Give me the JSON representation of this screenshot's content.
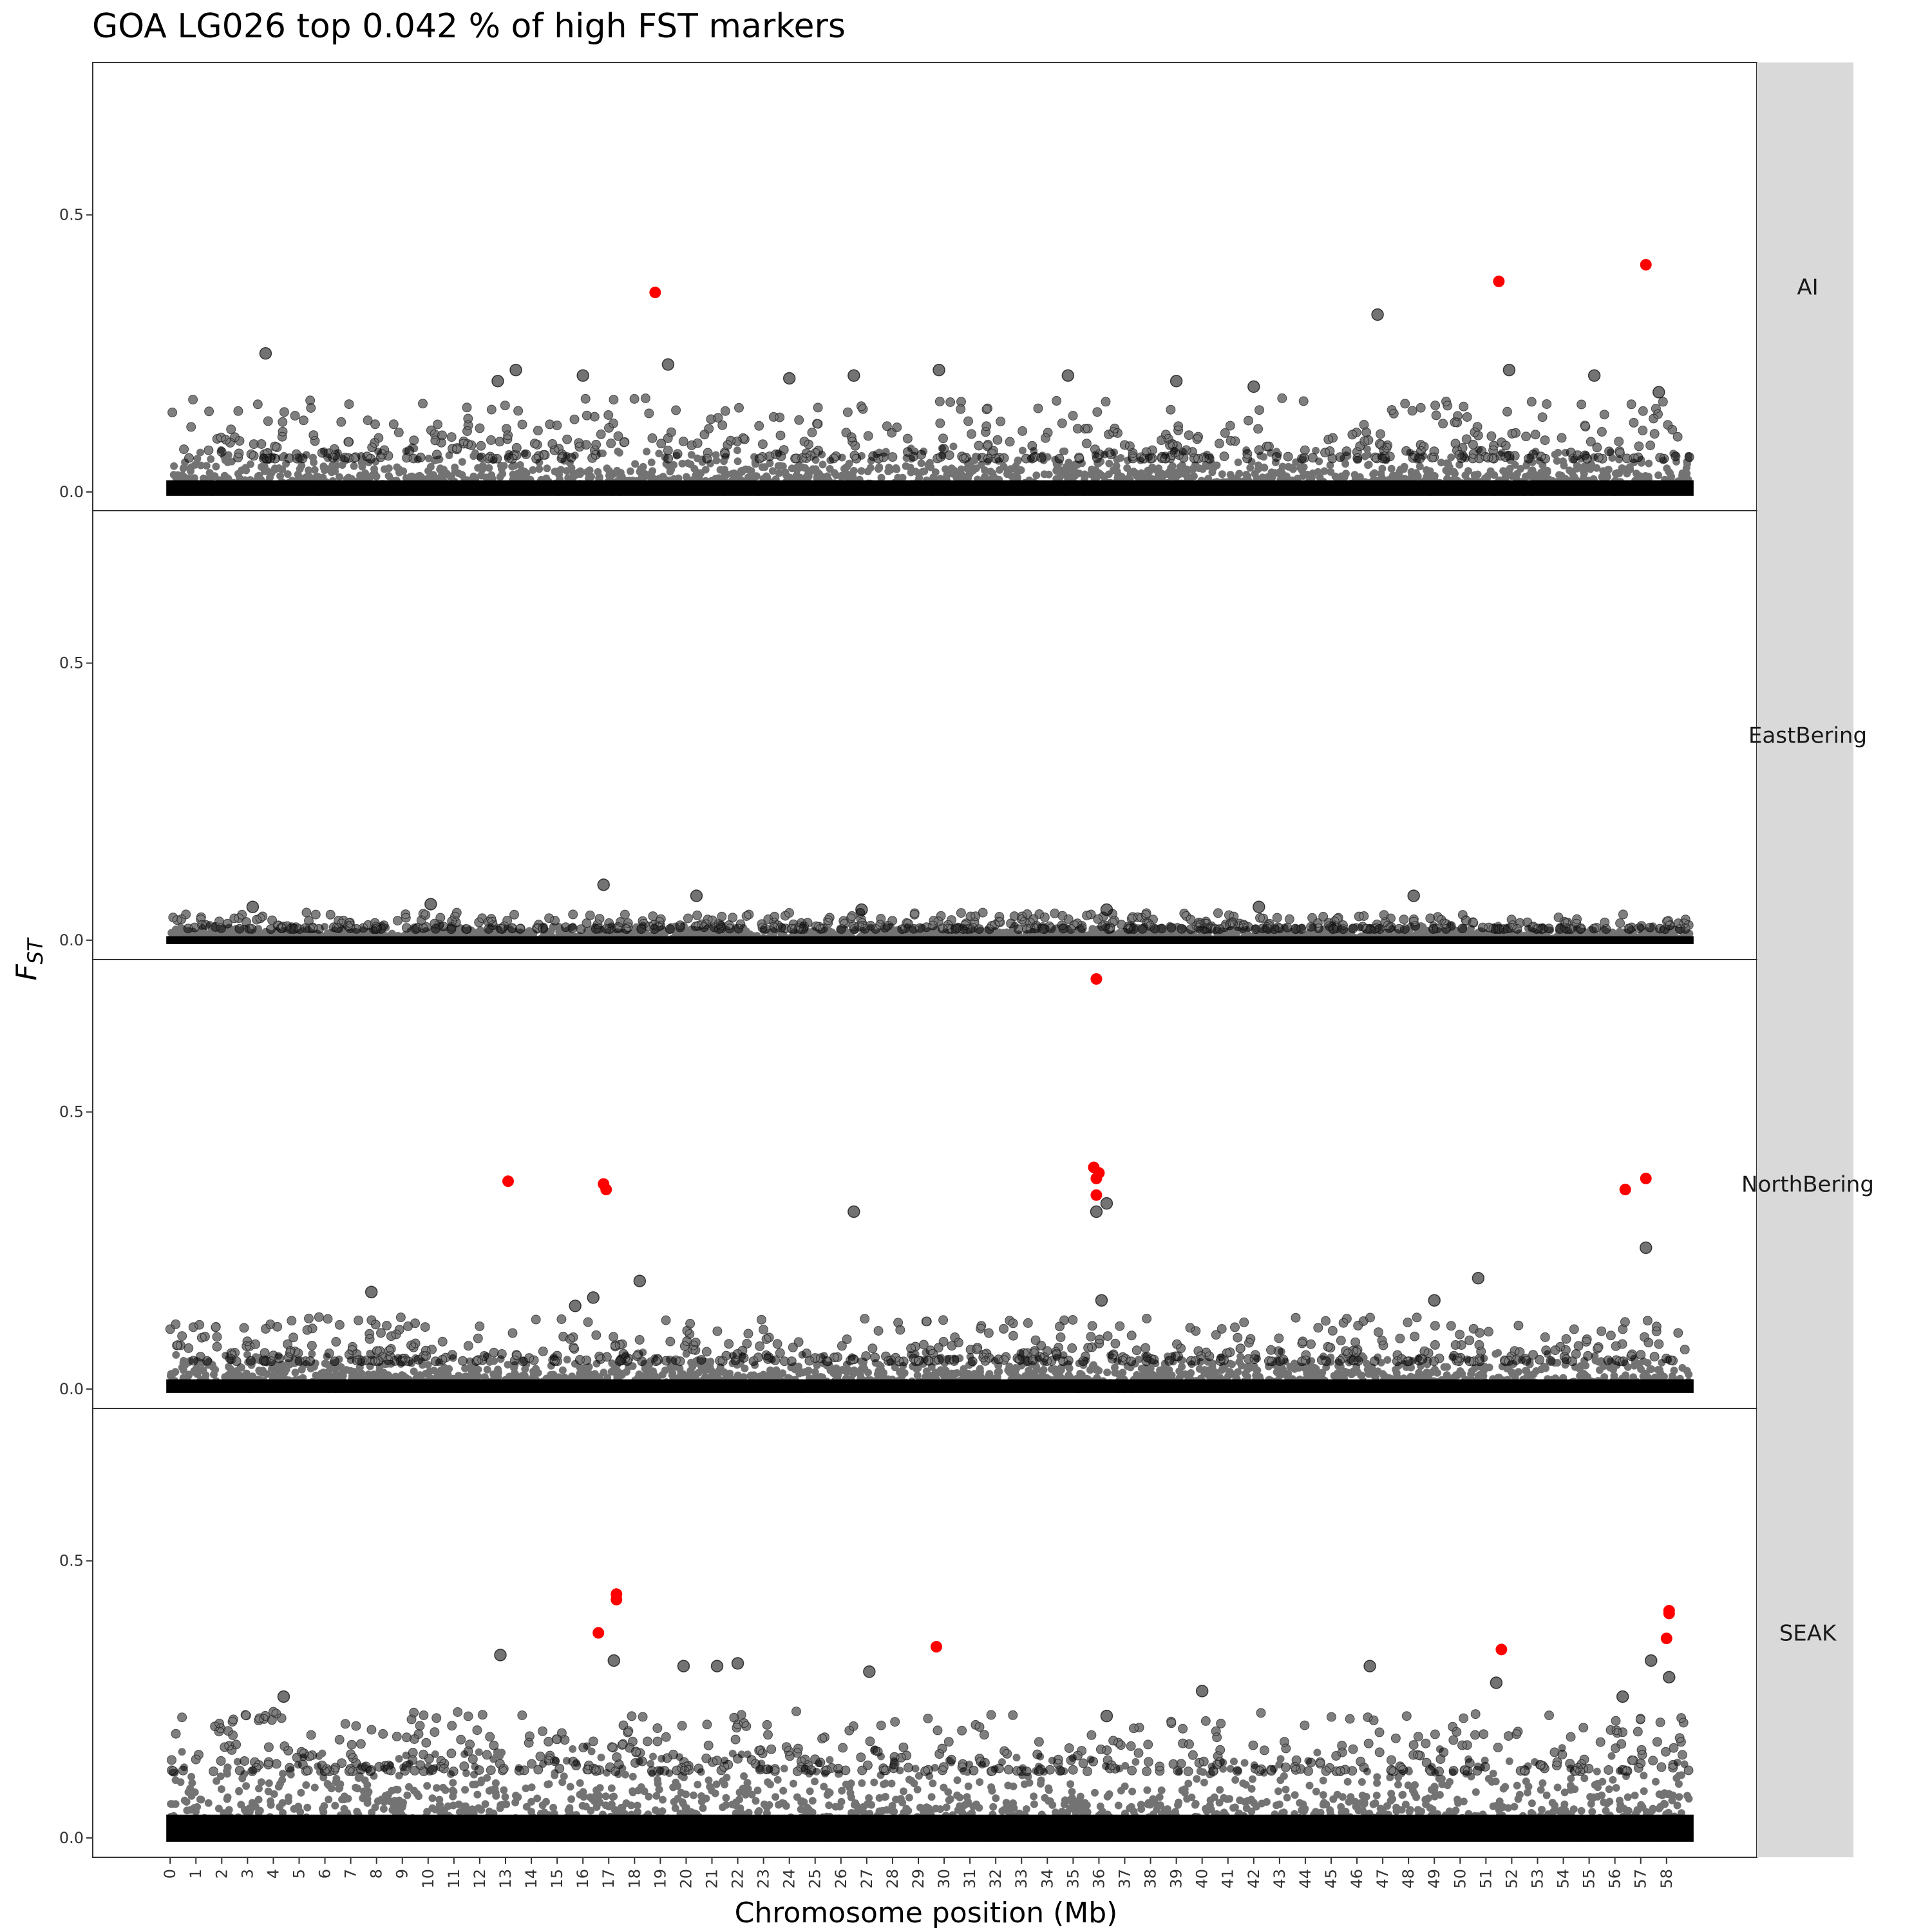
{
  "chart_data": {
    "type": "scatter",
    "title": "GOA LG026 top 0.042 % of high FST markers",
    "xlabel": "Chromosome position (Mb)",
    "ylabel_main": "F",
    "ylabel_sub": "ST",
    "x_ticks": [
      "0",
      "1",
      "2",
      "3",
      "4",
      "5",
      "6",
      "7",
      "8",
      "9",
      "10",
      "11",
      "12",
      "13",
      "14",
      "15",
      "16",
      "17",
      "18",
      "19",
      "20",
      "21",
      "22",
      "23",
      "24",
      "25",
      "26",
      "27",
      "28",
      "29",
      "30",
      "31",
      "32",
      "33",
      "34",
      "35",
      "36",
      "37",
      "38",
      "39",
      "40",
      "41",
      "42",
      "43",
      "44",
      "45",
      "46",
      "47",
      "48",
      "49",
      "50",
      "51",
      "52",
      "53",
      "54",
      "55",
      "56",
      "57",
      "58"
    ],
    "y_ticks": [
      "0.0",
      "0.5"
    ],
    "xlim": [
      -3,
      61.5
    ],
    "ylim": [
      -0.035,
      0.775
    ],
    "grid": false,
    "colors": {
      "marker": "#000000",
      "outlier": "#ff0000",
      "strip": "#d9d9d9"
    },
    "panels": [
      {
        "name": "AI",
        "outliers": [
          [
            18.8,
            0.36
          ],
          [
            51.5,
            0.38
          ],
          [
            57.2,
            0.41
          ]
        ],
        "notable_points": [
          [
            46.8,
            0.32
          ],
          [
            3.7,
            0.25
          ],
          [
            19.3,
            0.23
          ],
          [
            51.9,
            0.22
          ],
          [
            13.4,
            0.22
          ],
          [
            29.8,
            0.22
          ],
          [
            34.8,
            0.21
          ],
          [
            55.2,
            0.21
          ],
          [
            16.0,
            0.21
          ],
          [
            26.5,
            0.21
          ],
          [
            24.0,
            0.205
          ],
          [
            12.7,
            0.2
          ],
          [
            39.0,
            0.2
          ],
          [
            42.0,
            0.19
          ],
          [
            57.7,
            0.18
          ]
        ],
        "background": {
          "baseline_max": 0.06,
          "spread_max": 0.17
        }
      },
      {
        "name": "EastBering",
        "outliers": [],
        "notable_points": [
          [
            16.8,
            0.1
          ],
          [
            20.4,
            0.08
          ],
          [
            48.2,
            0.08
          ],
          [
            10.1,
            0.065
          ],
          [
            3.2,
            0.06
          ],
          [
            42.2,
            0.06
          ],
          [
            36.3,
            0.055
          ],
          [
            26.8,
            0.055
          ]
        ],
        "background": {
          "baseline_max": 0.02,
          "spread_max": 0.05
        }
      },
      {
        "name": "NorthBering",
        "outliers": [
          [
            35.9,
            0.74
          ],
          [
            13.1,
            0.375
          ],
          [
            16.8,
            0.37
          ],
          [
            16.9,
            0.36
          ],
          [
            35.8,
            0.4
          ],
          [
            36.0,
            0.39
          ],
          [
            35.9,
            0.38
          ],
          [
            35.9,
            0.35
          ],
          [
            56.4,
            0.36
          ],
          [
            57.2,
            0.38
          ]
        ],
        "notable_points": [
          [
            26.5,
            0.32
          ],
          [
            35.9,
            0.32
          ],
          [
            36.3,
            0.335
          ],
          [
            57.2,
            0.255
          ],
          [
            50.7,
            0.2
          ],
          [
            18.2,
            0.195
          ],
          [
            7.8,
            0.175
          ],
          [
            49.0,
            0.16
          ],
          [
            36.1,
            0.16
          ],
          [
            16.4,
            0.165
          ],
          [
            15.7,
            0.15
          ]
        ],
        "background": {
          "baseline_max": 0.05,
          "spread_max": 0.13
        }
      },
      {
        "name": "SEAK",
        "outliers": [
          [
            17.3,
            0.44
          ],
          [
            17.3,
            0.43
          ],
          [
            16.6,
            0.37
          ],
          [
            29.7,
            0.345
          ],
          [
            51.6,
            0.34
          ],
          [
            58.1,
            0.41
          ],
          [
            58.1,
            0.405
          ],
          [
            58.0,
            0.36
          ]
        ],
        "notable_points": [
          [
            12.8,
            0.33
          ],
          [
            17.2,
            0.32
          ],
          [
            57.4,
            0.32
          ],
          [
            22.0,
            0.315
          ],
          [
            21.2,
            0.31
          ],
          [
            19.9,
            0.31
          ],
          [
            46.5,
            0.31
          ],
          [
            27.1,
            0.3
          ],
          [
            58.1,
            0.29
          ],
          [
            51.4,
            0.28
          ],
          [
            40.0,
            0.265
          ],
          [
            56.3,
            0.255
          ],
          [
            4.4,
            0.255
          ],
          [
            36.3,
            0.22
          ]
        ],
        "background": {
          "baseline_max": 0.12,
          "spread_max": 0.23
        }
      }
    ]
  }
}
